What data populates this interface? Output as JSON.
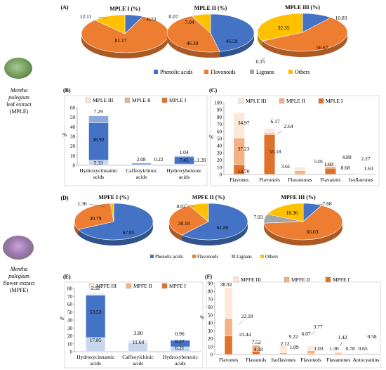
{
  "side_labels": {
    "leaf": {
      "name": "Mentha pulegium",
      "line2": "leaf extract",
      "line3": "(MPLE)"
    },
    "flower": {
      "name": "Mentha pulegium",
      "line2": "flower extract",
      "line3": "(MPFE)"
    }
  },
  "colors": {
    "phenolic": "#4472c4",
    "flavonoids": "#ed7d31",
    "lignans": "#a5a5a5",
    "others": "#ffc000",
    "s3": "#fde9d9",
    "s2": "#f4b183",
    "s1": "#e0712a"
  },
  "chart_data": [
    {
      "id": "A",
      "panel_label": "(A)",
      "type": "pie",
      "legend": [
        "Phenolic acids",
        "Flavonoids",
        "Lignans",
        "Others"
      ],
      "pies": [
        {
          "title": "MPLE I (%)",
          "values": [
            6.72,
            81.17,
            0,
            12.11
          ],
          "labels": [
            "6.72",
            "81.17",
            "",
            "12.11"
          ]
        },
        {
          "title": "MPLE II (%)",
          "values": [
            46.59,
            46.3,
            0.07,
            7.04
          ],
          "labels": [
            "46.59",
            "46.30",
            "0.07",
            "7.04"
          ]
        },
        {
          "title": "MPLE III (%)",
          "values": [
            10.83,
            56.67,
            0.15,
            32.35
          ],
          "labels": [
            "10.83",
            "56.67",
            "0.15",
            "32.35"
          ]
        }
      ]
    },
    {
      "id": "B",
      "panel_label": "(B)",
      "type": "bar",
      "stacked": true,
      "ylabel": "%",
      "ylim": [
        0,
        60
      ],
      "yticks": [
        0,
        10,
        20,
        30,
        40,
        50,
        60
      ],
      "legend": [
        "MPLE III",
        "MPLE II",
        "MPLE I"
      ],
      "categories": [
        "Hydroxycinnamic acids",
        "Caffeoylchinic acids",
        "Hydroxybenzoic acids"
      ],
      "series": [
        {
          "name": "MPLE I",
          "values": [
            5.33,
            0,
            1.39
          ]
        },
        {
          "name": "MPLE II",
          "values": [
            38.92,
            0.22,
            7.45
          ]
        },
        {
          "name": "MPLE III",
          "values": [
            7.29,
            2.08,
            1.04
          ]
        }
      ]
    },
    {
      "id": "C",
      "panel_label": "(C)",
      "type": "bar",
      "stacked": true,
      "ylabel": "%",
      "ylim": [
        0,
        100
      ],
      "yticks": [
        0,
        10,
        20,
        30,
        40,
        50,
        60,
        70,
        80,
        90,
        100
      ],
      "legend": [
        "MPLE III",
        "MPLE II",
        "MPLE I"
      ],
      "categories": [
        "Flavones",
        "Flavonols",
        "Flavanones",
        "Flavanols",
        "Isoflavones"
      ],
      "series": [
        {
          "name": "MPLE I",
          "values": [
            13.7,
            55.18,
            1.6,
            8.68,
            0
          ]
        },
        {
          "name": "MPLE II",
          "values": [
            37.23,
            2.64,
            3.61,
            2.27,
            0
          ]
        },
        {
          "name": "MPLE III",
          "values": [
            34.97,
            6.17,
            5.01,
            4.89,
            1.63
          ]
        }
      ]
    },
    {
      "id": "D",
      "panel_label": "(D)",
      "type": "pie",
      "legend": [
        "Phenolic acids",
        "Flavonoids",
        "Lignans",
        "Others"
      ],
      "pies": [
        {
          "title": "MPFE I (%)",
          "values": [
            67.85,
            30.79,
            0,
            1.36
          ],
          "labels": [
            "67.85",
            "30.79",
            "",
            "1.36"
          ]
        },
        {
          "title": "MPFE II (%)",
          "values": [
            61.8,
            30.18,
            0,
            8.02
          ],
          "labels": [
            "61.80",
            "30.18",
            "",
            "8.02"
          ]
        },
        {
          "title": "MPFE III (%)",
          "values": [
            7.68,
            66.03,
            7.93,
            18.36
          ],
          "labels": [
            "7.68",
            "66.03",
            "7.93",
            "18.36"
          ]
        }
      ]
    },
    {
      "id": "E",
      "panel_label": "(E)",
      "type": "bar",
      "stacked": true,
      "ylabel": "%",
      "ylim": [
        0,
        80
      ],
      "yticks": [
        0,
        10,
        20,
        30,
        40,
        50,
        60,
        70,
        80
      ],
      "legend": [
        "MPFE III",
        "MPFE II",
        "MPFE I"
      ],
      "categories": [
        "Hydroxycinnamic acids",
        "Caffeoylchinic acids",
        "Hydroxybenzoic acids"
      ],
      "series": [
        {
          "name": "MPFE I",
          "values": [
            17.85,
            11.64,
            6.21
          ]
        },
        {
          "name": "MPFE II",
          "values": [
            53.53,
            0,
            8.27
          ]
        },
        {
          "name": "MPFE III",
          "values": [
            2.92,
            3.8,
            0.96
          ]
        }
      ]
    },
    {
      "id": "F",
      "panel_label": "(F)",
      "type": "bar",
      "stacked": true,
      "ylabel": "%",
      "ylim": [
        0,
        90
      ],
      "yticks": [
        0,
        10,
        20,
        30,
        40,
        50,
        60,
        70,
        80,
        90
      ],
      "legend": [
        "MPFE III",
        "MPFE II",
        "MPFE I"
      ],
      "categories": [
        "Flavones",
        "Flavanols",
        "Isoflavones",
        "Flavonols",
        "Flavanones",
        "Antocyanins"
      ],
      "series": [
        {
          "name": "MPFE I",
          "values": [
            23.44,
            4.18,
            0,
            1.09,
            1.03,
            0.65
          ]
        },
        {
          "name": "MPFE II",
          "values": [
            22.18,
            7.52,
            2.12,
            3.77,
            1.3,
            0.78
          ]
        },
        {
          "name": "MPFE III",
          "values": [
            38.92,
            0,
            9.22,
            6.07,
            1.42,
            0.58
          ]
        }
      ]
    }
  ]
}
